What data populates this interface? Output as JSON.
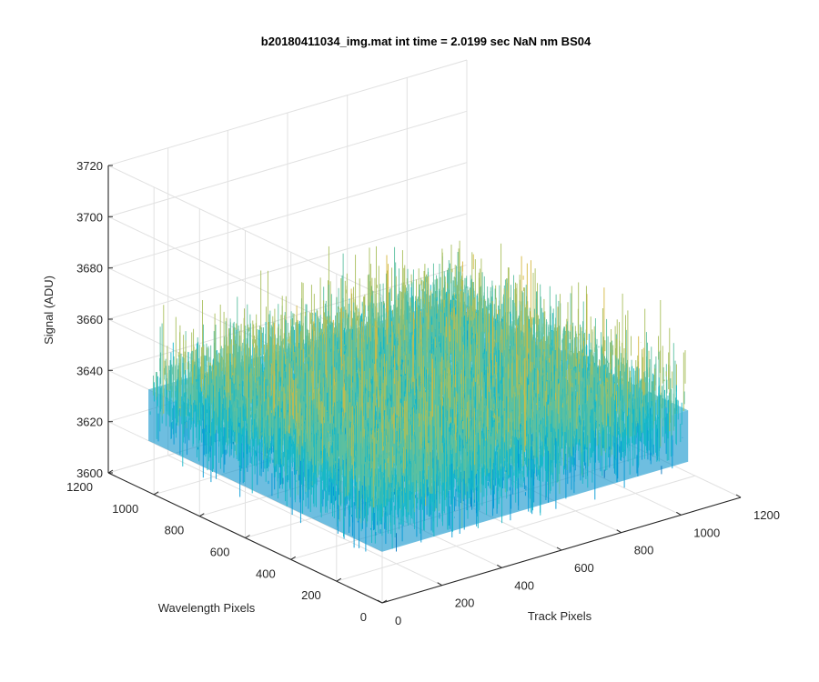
{
  "chart_data": {
    "type": "surface",
    "title": "b20180411034_img.mat int time = 2.0199 sec  NaN nm BS04",
    "xlabel": "Track Pixels",
    "ylabel": "Wavelength Pixels",
    "zlabel": "Signal (ADU)",
    "xlim": [
      0,
      1200
    ],
    "ylim": [
      0,
      1200
    ],
    "zlim": [
      3600,
      3720
    ],
    "x_ticks": [
      "0",
      "200",
      "400",
      "600",
      "800",
      "1000",
      "1200"
    ],
    "y_ticks": [
      "0",
      "200",
      "400",
      "600",
      "800",
      "1000",
      "1200"
    ],
    "z_ticks": [
      "3600",
      "3620",
      "3640",
      "3660",
      "3680",
      "3700",
      "3720"
    ],
    "data_extent": {
      "x": [
        0,
        1024
      ],
      "y": [
        0,
        1024
      ]
    },
    "typical_level": 3640,
    "signal_range": [
      3620,
      3660
    ],
    "peak_range": [
      3615,
      3680
    ],
    "colormap": [
      "#0072bd",
      "#0099d6",
      "#16b8c8",
      "#5cc0a0",
      "#a9bf5c",
      "#d6b840"
    ],
    "grid": true,
    "box": false
  }
}
